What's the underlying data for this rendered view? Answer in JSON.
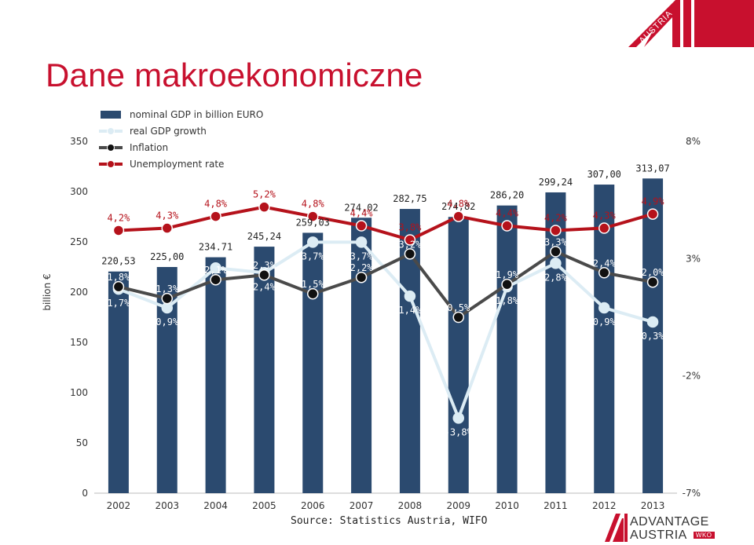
{
  "title": "Dane makroekonomiczne",
  "source": "Source: Statistics Austria, WIFO",
  "logo_top": "AUSTRIA",
  "logo_bottom": {
    "line1": "ADVANTAGE",
    "line2": "AUSTRIA",
    "badge": "WKO"
  },
  "colors": {
    "bar": "#2b4a6f",
    "real_gdp": "#dcecf4",
    "inflation": "#4a4a4a",
    "unemployment": "#b5121b",
    "accent": "#c8102e"
  },
  "chart_data": {
    "type": "bar",
    "ylabel": "billion €",
    "ylim": [
      0,
      350
    ],
    "y_ticks": [
      "0",
      "50",
      "100",
      "150",
      "200",
      "250",
      "300",
      "350"
    ],
    "y2lim": [
      -7,
      8
    ],
    "y2_ticks": [
      "-7%",
      "-2%",
      "3%",
      "8%"
    ],
    "legend_position": "top-left",
    "categories": [
      "2002",
      "2003",
      "2004",
      "2005",
      "2006",
      "2007",
      "2008",
      "2009",
      "2010",
      "2011",
      "2012",
      "2013"
    ],
    "bar_series": {
      "name": "nominal GDP in billion EURO",
      "values": [
        220.53,
        225.0,
        234.71,
        245.24,
        259.03,
        274.02,
        282.75,
        274.82,
        286.2,
        299.24,
        307.0,
        313.07
      ],
      "labels": [
        "220,53",
        "225,00",
        "234.71",
        "245,24",
        "259,03",
        "274,02",
        "282,75",
        "274,82",
        "286,20",
        "299,24",
        "307,00",
        "313,07"
      ]
    },
    "line_series": [
      {
        "name": "real GDP growth",
        "values": [
          1.7,
          0.9,
          2.6,
          2.4,
          3.7,
          3.7,
          1.4,
          -3.8,
          1.8,
          2.8,
          0.9,
          0.3
        ],
        "labels": [
          "1,7%",
          "0,9%",
          "",
          "2,4%",
          "3,7%",
          "3,7%",
          "1,4%",
          "-3,8%",
          "1,8%",
          "2,8%",
          "0,9%",
          "0,3%"
        ]
      },
      {
        "name": "Inflation",
        "values": [
          1.8,
          1.3,
          2.1,
          2.3,
          1.5,
          2.2,
          3.2,
          0.5,
          1.9,
          3.3,
          2.4,
          2.0
        ],
        "labels": [
          "1,8%",
          "1,3%",
          "2,1%",
          "2,3%",
          "1,5%",
          "2,2%",
          "3,2%",
          "0,5%",
          "1,9%",
          "3,3%",
          "2,4%",
          "2,0%"
        ]
      },
      {
        "name": "Unemployment rate",
        "values": [
          4.2,
          4.3,
          4.8,
          5.2,
          4.8,
          4.4,
          3.8,
          4.8,
          4.4,
          4.2,
          4.3,
          4.9
        ],
        "labels": [
          "4,2%",
          "4,3%",
          "4,8%",
          "5,2%",
          "4,8%",
          "4,4%",
          "3,8%",
          "4,8%",
          "4,4%",
          "4,2%",
          "4,3%",
          "4,9%"
        ]
      }
    ]
  }
}
